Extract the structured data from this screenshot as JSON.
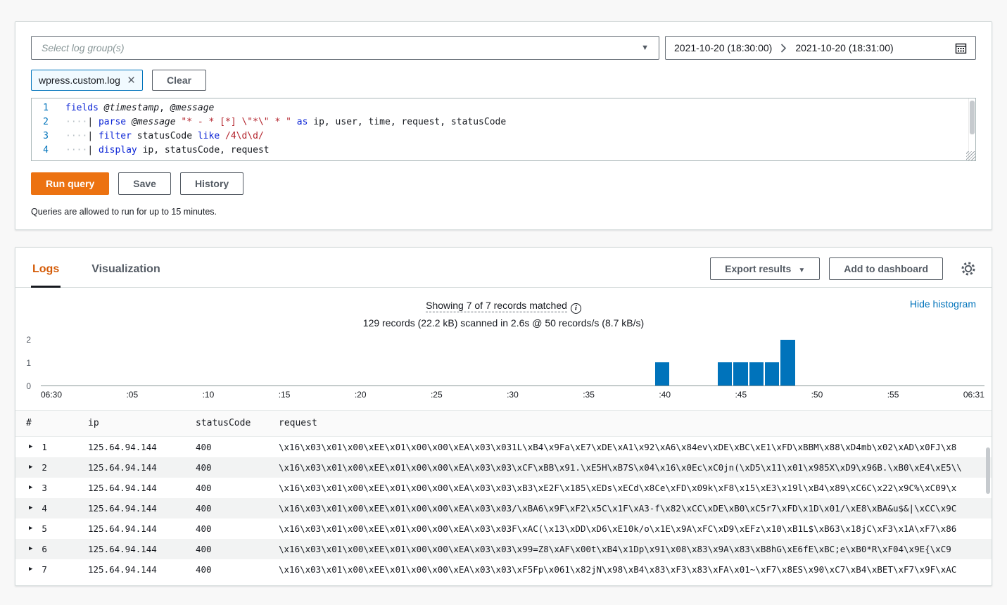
{
  "colors": {
    "accent_orange": "#ec7211",
    "link_blue": "#0073bb",
    "histogram_bar": "#0073bb",
    "keyword_blue": "#0b24d6",
    "string_red": "#b3232c",
    "active_tab_orange": "#d45b07"
  },
  "query_panel": {
    "log_group_placeholder": "Select log group(s)",
    "date_range": {
      "start": "2021-10-20 (18:30:00)",
      "end": "2021-10-20 (18:31:00)"
    },
    "selected_log_group": "wpress.custom.log",
    "clear_button": "Clear",
    "run_query_button": "Run query",
    "save_button": "Save",
    "history_button": "History",
    "note": "Queries are allowed to run for up to 15 minutes.",
    "editor_lines": [
      {
        "num": "1",
        "segments": [
          {
            "t": "kw",
            "v": "fields"
          },
          {
            "t": "plain",
            "v": " "
          },
          {
            "t": "field",
            "v": "@timestamp"
          },
          {
            "t": "plain",
            "v": ", "
          },
          {
            "t": "field",
            "v": "@message"
          }
        ]
      },
      {
        "num": "2",
        "segments": [
          {
            "t": "ws",
            "v": "····"
          },
          {
            "t": "plain",
            "v": "| "
          },
          {
            "t": "kw",
            "v": "parse"
          },
          {
            "t": "plain",
            "v": " "
          },
          {
            "t": "field",
            "v": "@message"
          },
          {
            "t": "plain",
            "v": " "
          },
          {
            "t": "str",
            "v": "\"* - * [*] \\\"*\\\" * \""
          },
          {
            "t": "plain",
            "v": " "
          },
          {
            "t": "kw",
            "v": "as"
          },
          {
            "t": "plain",
            "v": " ip, user, time, request, statusCode"
          }
        ]
      },
      {
        "num": "3",
        "segments": [
          {
            "t": "ws",
            "v": "····"
          },
          {
            "t": "plain",
            "v": "| "
          },
          {
            "t": "kw",
            "v": "filter"
          },
          {
            "t": "plain",
            "v": " statusCode "
          },
          {
            "t": "kw",
            "v": "like"
          },
          {
            "t": "plain",
            "v": " "
          },
          {
            "t": "str",
            "v": "/4\\d\\d/"
          }
        ]
      },
      {
        "num": "4",
        "segments": [
          {
            "t": "ws",
            "v": "····"
          },
          {
            "t": "plain",
            "v": "| "
          },
          {
            "t": "kw",
            "v": "display"
          },
          {
            "t": "plain",
            "v": " ip, statusCode, request"
          }
        ]
      }
    ]
  },
  "results_panel": {
    "tabs": [
      {
        "label": "Logs",
        "active": true
      },
      {
        "label": "Visualization",
        "active": false
      }
    ],
    "export_results_button": "Export results",
    "add_to_dashboard_button": "Add to dashboard",
    "summary_line1": "Showing 7 of 7 records matched",
    "summary_line2": "129 records (22.2 kB) scanned in 2.6s @ 50 records/s (8.7 kB/s)",
    "hide_histogram_link": "Hide histogram"
  },
  "chart_data": {
    "type": "bar",
    "title": "",
    "xlabel": "",
    "ylabel": "",
    "x_axis_seconds_range": [
      0,
      60
    ],
    "x_tick_labels": [
      "06:30",
      ":05",
      ":10",
      ":15",
      ":20",
      ":25",
      ":30",
      ":35",
      ":40",
      ":45",
      ":50",
      ":55",
      "06:31"
    ],
    "ylim": [
      0,
      2
    ],
    "y_ticks": [
      0,
      1,
      2
    ],
    "bars": [
      {
        "x_second": 39,
        "count": 1
      },
      {
        "x_second": 43,
        "count": 1
      },
      {
        "x_second": 44,
        "count": 1
      },
      {
        "x_second": 45,
        "count": 1
      },
      {
        "x_second": 46,
        "count": 1
      },
      {
        "x_second": 47,
        "count": 2
      }
    ],
    "legend": "off",
    "grid": "off"
  },
  "table": {
    "columns": [
      "#",
      "ip",
      "statusCode",
      "request"
    ],
    "rows": [
      {
        "num": "1",
        "ip": "125.64.94.144",
        "statusCode": "400",
        "request": "\\x16\\x03\\x01\\x00\\xEE\\x01\\x00\\x00\\xEA\\x03\\x031L\\xB4\\x9Fa\\xE7\\xDE\\xA1\\x92\\xA6\\x84ev\\xDE\\xBC\\xE1\\xFD\\xBBM\\x88\\xD4mb\\x02\\xAD\\x0FJ\\x8"
      },
      {
        "num": "2",
        "ip": "125.64.94.144",
        "statusCode": "400",
        "request": "\\x16\\x03\\x01\\x00\\xEE\\x01\\x00\\x00\\xEA\\x03\\x03\\xCF\\xBB\\x91.\\xE5H\\xB7S\\x04\\x16\\x0Ec\\xC0jn(\\xD5\\x11\\x01\\x985X\\xD9\\x96B.\\xB0\\xE4\\xE5\\\\"
      },
      {
        "num": "3",
        "ip": "125.64.94.144",
        "statusCode": "400",
        "request": "\\x16\\x03\\x01\\x00\\xEE\\x01\\x00\\x00\\xEA\\x03\\x03\\xB3\\xE2F\\x185\\xEDs\\xECd\\x8Ce\\xFD\\x09k\\xF8\\x15\\xE3\\x19l\\xB4\\x89\\xC6C\\x22\\x9C%\\xC09\\x"
      },
      {
        "num": "4",
        "ip": "125.64.94.144",
        "statusCode": "400",
        "request": "\\x16\\x03\\x01\\x00\\xEE\\x01\\x00\\x00\\xEA\\x03\\x03/\\xBA6\\x9F\\xF2\\x5C\\x1F\\xA3-f\\x82\\xCC\\xDE\\xB0\\xC5r7\\xFD\\x1D\\x01/\\xE8\\xBA&u$&|\\xCC\\x9C"
      },
      {
        "num": "5",
        "ip": "125.64.94.144",
        "statusCode": "400",
        "request": "\\x16\\x03\\x01\\x00\\xEE\\x01\\x00\\x00\\xEA\\x03\\x03F\\xAC(\\x13\\xDD\\xD6\\xE10k/o\\x1E\\x9A\\xFC\\xD9\\xEFz\\x10\\xB1L$\\xB63\\x18jC\\xF3\\x1A\\xF7\\x86"
      },
      {
        "num": "6",
        "ip": "125.64.94.144",
        "statusCode": "400",
        "request": "\\x16\\x03\\x01\\x00\\xEE\\x01\\x00\\x00\\xEA\\x03\\x03\\x99=Z8\\xAF\\x00t\\xB4\\x1Dp\\x91\\x08\\x83\\x9A\\x83\\xB8hG\\xE6fE\\xBC;e\\xB0*R\\xF04\\x9E{\\xC9"
      },
      {
        "num": "7",
        "ip": "125.64.94.144",
        "statusCode": "400",
        "request": "\\x16\\x03\\x01\\x00\\xEE\\x01\\x00\\x00\\xEA\\x03\\x03\\xF5Fp\\x061\\x82jN\\x98\\xB4\\x83\\xF3\\x83\\xFA\\x01~\\xF7\\x8ES\\x90\\xC7\\xB4\\xBET\\xF7\\x9F\\xAC"
      }
    ]
  }
}
